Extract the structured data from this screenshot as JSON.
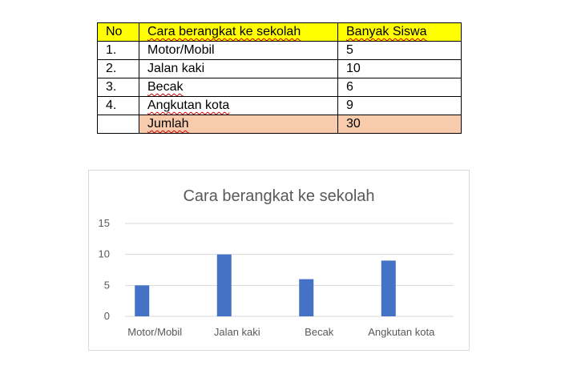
{
  "table": {
    "headers": [
      "No",
      "Cara berangkat ke sekolah",
      "Banyak Siswa"
    ],
    "rows": [
      {
        "no": "1.",
        "mode": "Motor/Mobil",
        "count": "5"
      },
      {
        "no": "2.",
        "mode": "Jalan kaki",
        "count": "10"
      },
      {
        "no": "3.",
        "mode": "Becak",
        "count": "6"
      },
      {
        "no": "4.",
        "mode": "Angkutan kota",
        "count": "9"
      }
    ],
    "total": {
      "label": "Jumlah",
      "value": "30"
    }
  },
  "colors": {
    "header_bg": "#ffff00",
    "total_bg": "#f8cbad",
    "bar": "#4472c4"
  },
  "chart_data": {
    "type": "bar",
    "title": "Cara berangkat ke sekolah",
    "categories": [
      "Motor/Mobil",
      "Jalan kaki",
      "Becak",
      "Angkutan kota"
    ],
    "values": [
      5,
      10,
      6,
      9
    ],
    "xlabel": "",
    "ylabel": "",
    "ylim": [
      0,
      15
    ],
    "yticks": [
      0,
      5,
      10,
      15
    ],
    "grid": true,
    "legend": "none"
  }
}
